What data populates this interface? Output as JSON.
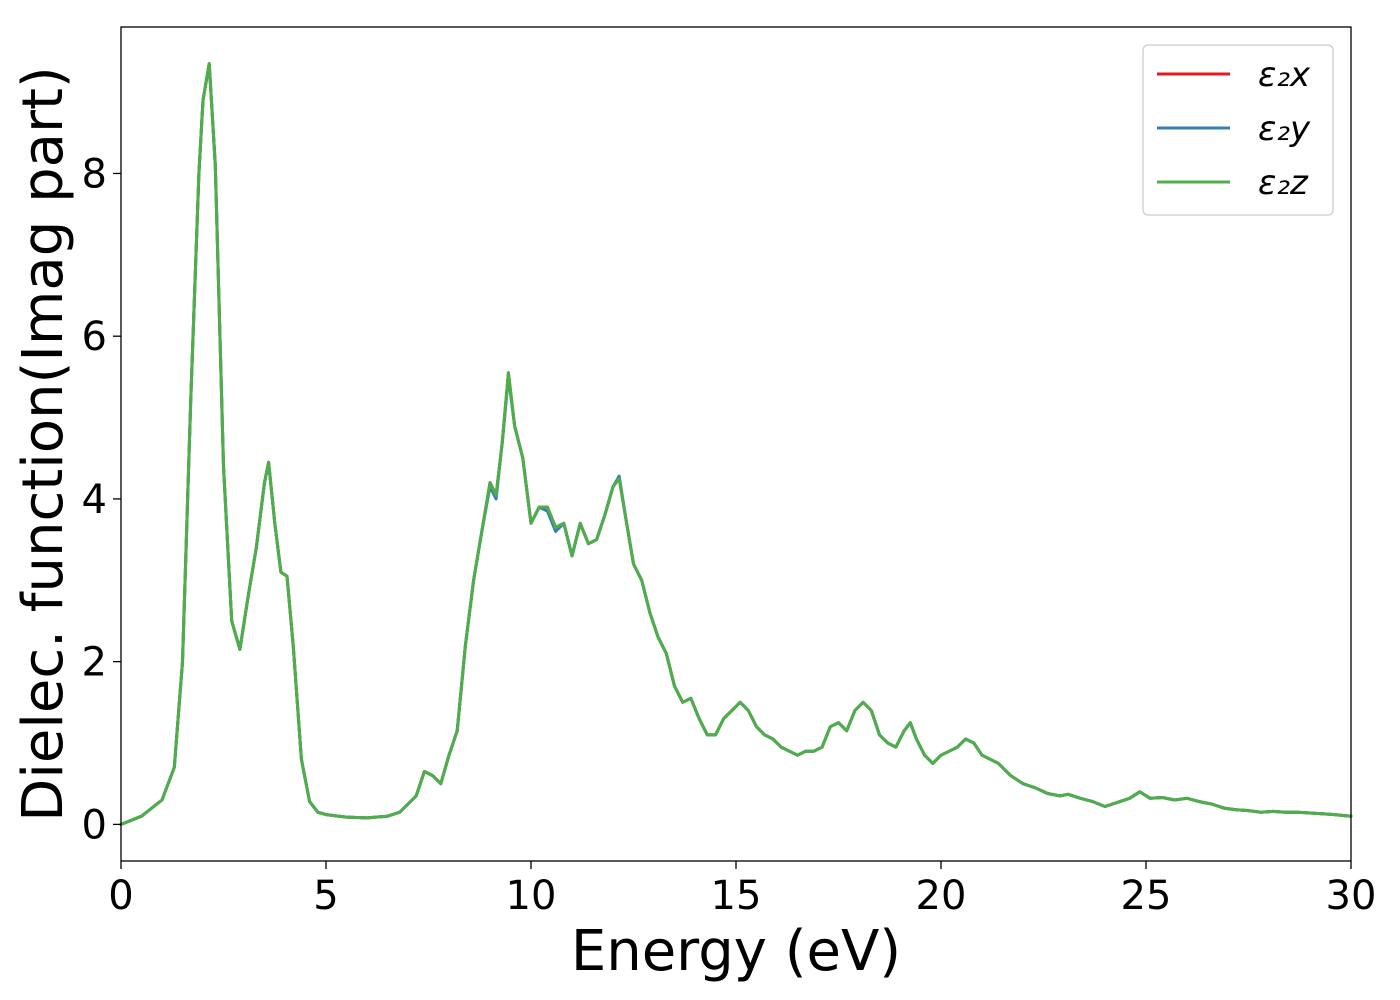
{
  "chart_data": {
    "type": "line",
    "xlabel": "Energy (eV)",
    "ylabel": "Dielec. function(Imag part)",
    "xlim": [
      0,
      30
    ],
    "ylim": [
      -0.45,
      9.8
    ],
    "xticks": [
      0,
      5,
      10,
      15,
      20,
      25,
      30
    ],
    "yticks": [
      0,
      2,
      4,
      6,
      8
    ],
    "grid": false,
    "legend_position": "top-right",
    "x": [
      0,
      0.5,
      1.0,
      1.3,
      1.5,
      1.7,
      1.9,
      2.0,
      2.15,
      2.3,
      2.5,
      2.7,
      2.9,
      3.1,
      3.3,
      3.5,
      3.6,
      3.75,
      3.9,
      4.05,
      4.2,
      4.4,
      4.6,
      4.8,
      5.0,
      5.5,
      6.0,
      6.5,
      6.8,
      7.0,
      7.2,
      7.4,
      7.6,
      7.8,
      8.0,
      8.2,
      8.4,
      8.6,
      8.8,
      9.0,
      9.15,
      9.3,
      9.45,
      9.6,
      9.8,
      10.0,
      10.2,
      10.4,
      10.6,
      10.8,
      11.0,
      11.2,
      11.4,
      11.6,
      11.8,
      12.0,
      12.15,
      12.3,
      12.5,
      12.7,
      12.9,
      13.1,
      13.3,
      13.5,
      13.7,
      13.9,
      14.1,
      14.3,
      14.5,
      14.7,
      14.9,
      15.1,
      15.3,
      15.5,
      15.7,
      15.9,
      16.1,
      16.3,
      16.5,
      16.7,
      16.9,
      17.1,
      17.3,
      17.5,
      17.7,
      17.9,
      18.1,
      18.3,
      18.5,
      18.7,
      18.9,
      19.1,
      19.25,
      19.4,
      19.6,
      19.8,
      20.0,
      20.2,
      20.4,
      20.6,
      20.8,
      21.0,
      21.2,
      21.4,
      21.7,
      22.0,
      22.3,
      22.6,
      22.9,
      23.1,
      23.4,
      23.7,
      24.0,
      24.3,
      24.6,
      24.85,
      25.1,
      25.4,
      25.7,
      26.0,
      26.3,
      26.6,
      26.9,
      27.2,
      27.5,
      27.8,
      28.1,
      28.4,
      28.7,
      29.0,
      29.3,
      29.6,
      30.0
    ],
    "series": [
      {
        "name": "ε₂x",
        "color": "#e41a1c",
        "values": [
          0.0,
          0.1,
          0.3,
          0.7,
          2.0,
          5.2,
          8.0,
          8.9,
          9.35,
          8.1,
          4.4,
          2.5,
          2.15,
          2.8,
          3.4,
          4.2,
          4.45,
          3.7,
          3.1,
          3.05,
          2.2,
          0.8,
          0.28,
          0.15,
          0.12,
          0.09,
          0.08,
          0.1,
          0.15,
          0.25,
          0.35,
          0.65,
          0.6,
          0.5,
          0.85,
          1.15,
          2.2,
          3.0,
          3.6,
          4.2,
          4.05,
          4.7,
          5.55,
          4.9,
          4.5,
          3.7,
          3.9,
          3.9,
          3.65,
          3.7,
          3.3,
          3.7,
          3.45,
          3.5,
          3.8,
          4.15,
          4.25,
          3.8,
          3.2,
          3.0,
          2.6,
          2.3,
          2.1,
          1.7,
          1.5,
          1.55,
          1.3,
          1.1,
          1.1,
          1.3,
          1.4,
          1.5,
          1.4,
          1.2,
          1.1,
          1.05,
          0.95,
          0.9,
          0.85,
          0.9,
          0.9,
          0.95,
          1.2,
          1.25,
          1.15,
          1.4,
          1.5,
          1.4,
          1.1,
          1.0,
          0.95,
          1.15,
          1.25,
          1.05,
          0.85,
          0.75,
          0.85,
          0.9,
          0.95,
          1.05,
          1.0,
          0.85,
          0.8,
          0.75,
          0.6,
          0.5,
          0.45,
          0.38,
          0.35,
          0.37,
          0.32,
          0.28,
          0.22,
          0.27,
          0.32,
          0.4,
          0.32,
          0.33,
          0.3,
          0.32,
          0.28,
          0.25,
          0.2,
          0.18,
          0.17,
          0.15,
          0.16,
          0.15,
          0.15,
          0.14,
          0.13,
          0.12,
          0.1
        ]
      },
      {
        "name": "ε₂y",
        "color": "#377eb8",
        "values": [
          0.0,
          0.1,
          0.3,
          0.7,
          2.0,
          5.2,
          8.0,
          8.9,
          9.35,
          8.1,
          4.4,
          2.5,
          2.15,
          2.8,
          3.4,
          4.2,
          4.45,
          3.7,
          3.1,
          3.05,
          2.2,
          0.8,
          0.28,
          0.15,
          0.12,
          0.09,
          0.08,
          0.1,
          0.15,
          0.25,
          0.35,
          0.65,
          0.6,
          0.5,
          0.85,
          1.15,
          2.2,
          3.0,
          3.6,
          4.15,
          4.0,
          4.7,
          5.5,
          4.9,
          4.5,
          3.7,
          3.9,
          3.85,
          3.6,
          3.7,
          3.3,
          3.7,
          3.45,
          3.5,
          3.8,
          4.15,
          4.28,
          3.8,
          3.2,
          3.0,
          2.6,
          2.3,
          2.1,
          1.7,
          1.5,
          1.55,
          1.3,
          1.1,
          1.1,
          1.3,
          1.4,
          1.5,
          1.4,
          1.2,
          1.1,
          1.05,
          0.95,
          0.9,
          0.85,
          0.9,
          0.9,
          0.95,
          1.2,
          1.25,
          1.15,
          1.4,
          1.5,
          1.4,
          1.1,
          1.0,
          0.95,
          1.15,
          1.25,
          1.05,
          0.85,
          0.75,
          0.85,
          0.9,
          0.95,
          1.05,
          1.0,
          0.85,
          0.8,
          0.75,
          0.6,
          0.5,
          0.45,
          0.38,
          0.35,
          0.37,
          0.32,
          0.28,
          0.22,
          0.27,
          0.32,
          0.4,
          0.32,
          0.33,
          0.3,
          0.32,
          0.28,
          0.25,
          0.2,
          0.18,
          0.17,
          0.15,
          0.16,
          0.15,
          0.15,
          0.14,
          0.13,
          0.12,
          0.1
        ]
      },
      {
        "name": "ε₂z",
        "color": "#4daf4a",
        "values": [
          0.0,
          0.1,
          0.3,
          0.7,
          2.0,
          5.2,
          8.0,
          8.9,
          9.35,
          8.1,
          4.4,
          2.5,
          2.15,
          2.8,
          3.4,
          4.2,
          4.45,
          3.7,
          3.1,
          3.05,
          2.2,
          0.8,
          0.28,
          0.15,
          0.12,
          0.09,
          0.08,
          0.1,
          0.15,
          0.25,
          0.35,
          0.65,
          0.6,
          0.5,
          0.85,
          1.15,
          2.2,
          3.0,
          3.6,
          4.2,
          4.05,
          4.7,
          5.55,
          4.9,
          4.5,
          3.7,
          3.9,
          3.9,
          3.65,
          3.7,
          3.3,
          3.7,
          3.45,
          3.5,
          3.8,
          4.15,
          4.25,
          3.8,
          3.2,
          3.0,
          2.6,
          2.3,
          2.1,
          1.7,
          1.5,
          1.55,
          1.3,
          1.1,
          1.1,
          1.3,
          1.4,
          1.5,
          1.4,
          1.2,
          1.1,
          1.05,
          0.95,
          0.9,
          0.85,
          0.9,
          0.9,
          0.95,
          1.2,
          1.25,
          1.15,
          1.4,
          1.5,
          1.4,
          1.1,
          1.0,
          0.95,
          1.15,
          1.25,
          1.05,
          0.85,
          0.75,
          0.85,
          0.9,
          0.95,
          1.05,
          1.0,
          0.85,
          0.8,
          0.75,
          0.6,
          0.5,
          0.45,
          0.38,
          0.35,
          0.37,
          0.32,
          0.28,
          0.22,
          0.27,
          0.32,
          0.4,
          0.32,
          0.33,
          0.3,
          0.32,
          0.28,
          0.25,
          0.2,
          0.18,
          0.17,
          0.15,
          0.16,
          0.15,
          0.15,
          0.14,
          0.13,
          0.12,
          0.1
        ]
      }
    ]
  }
}
